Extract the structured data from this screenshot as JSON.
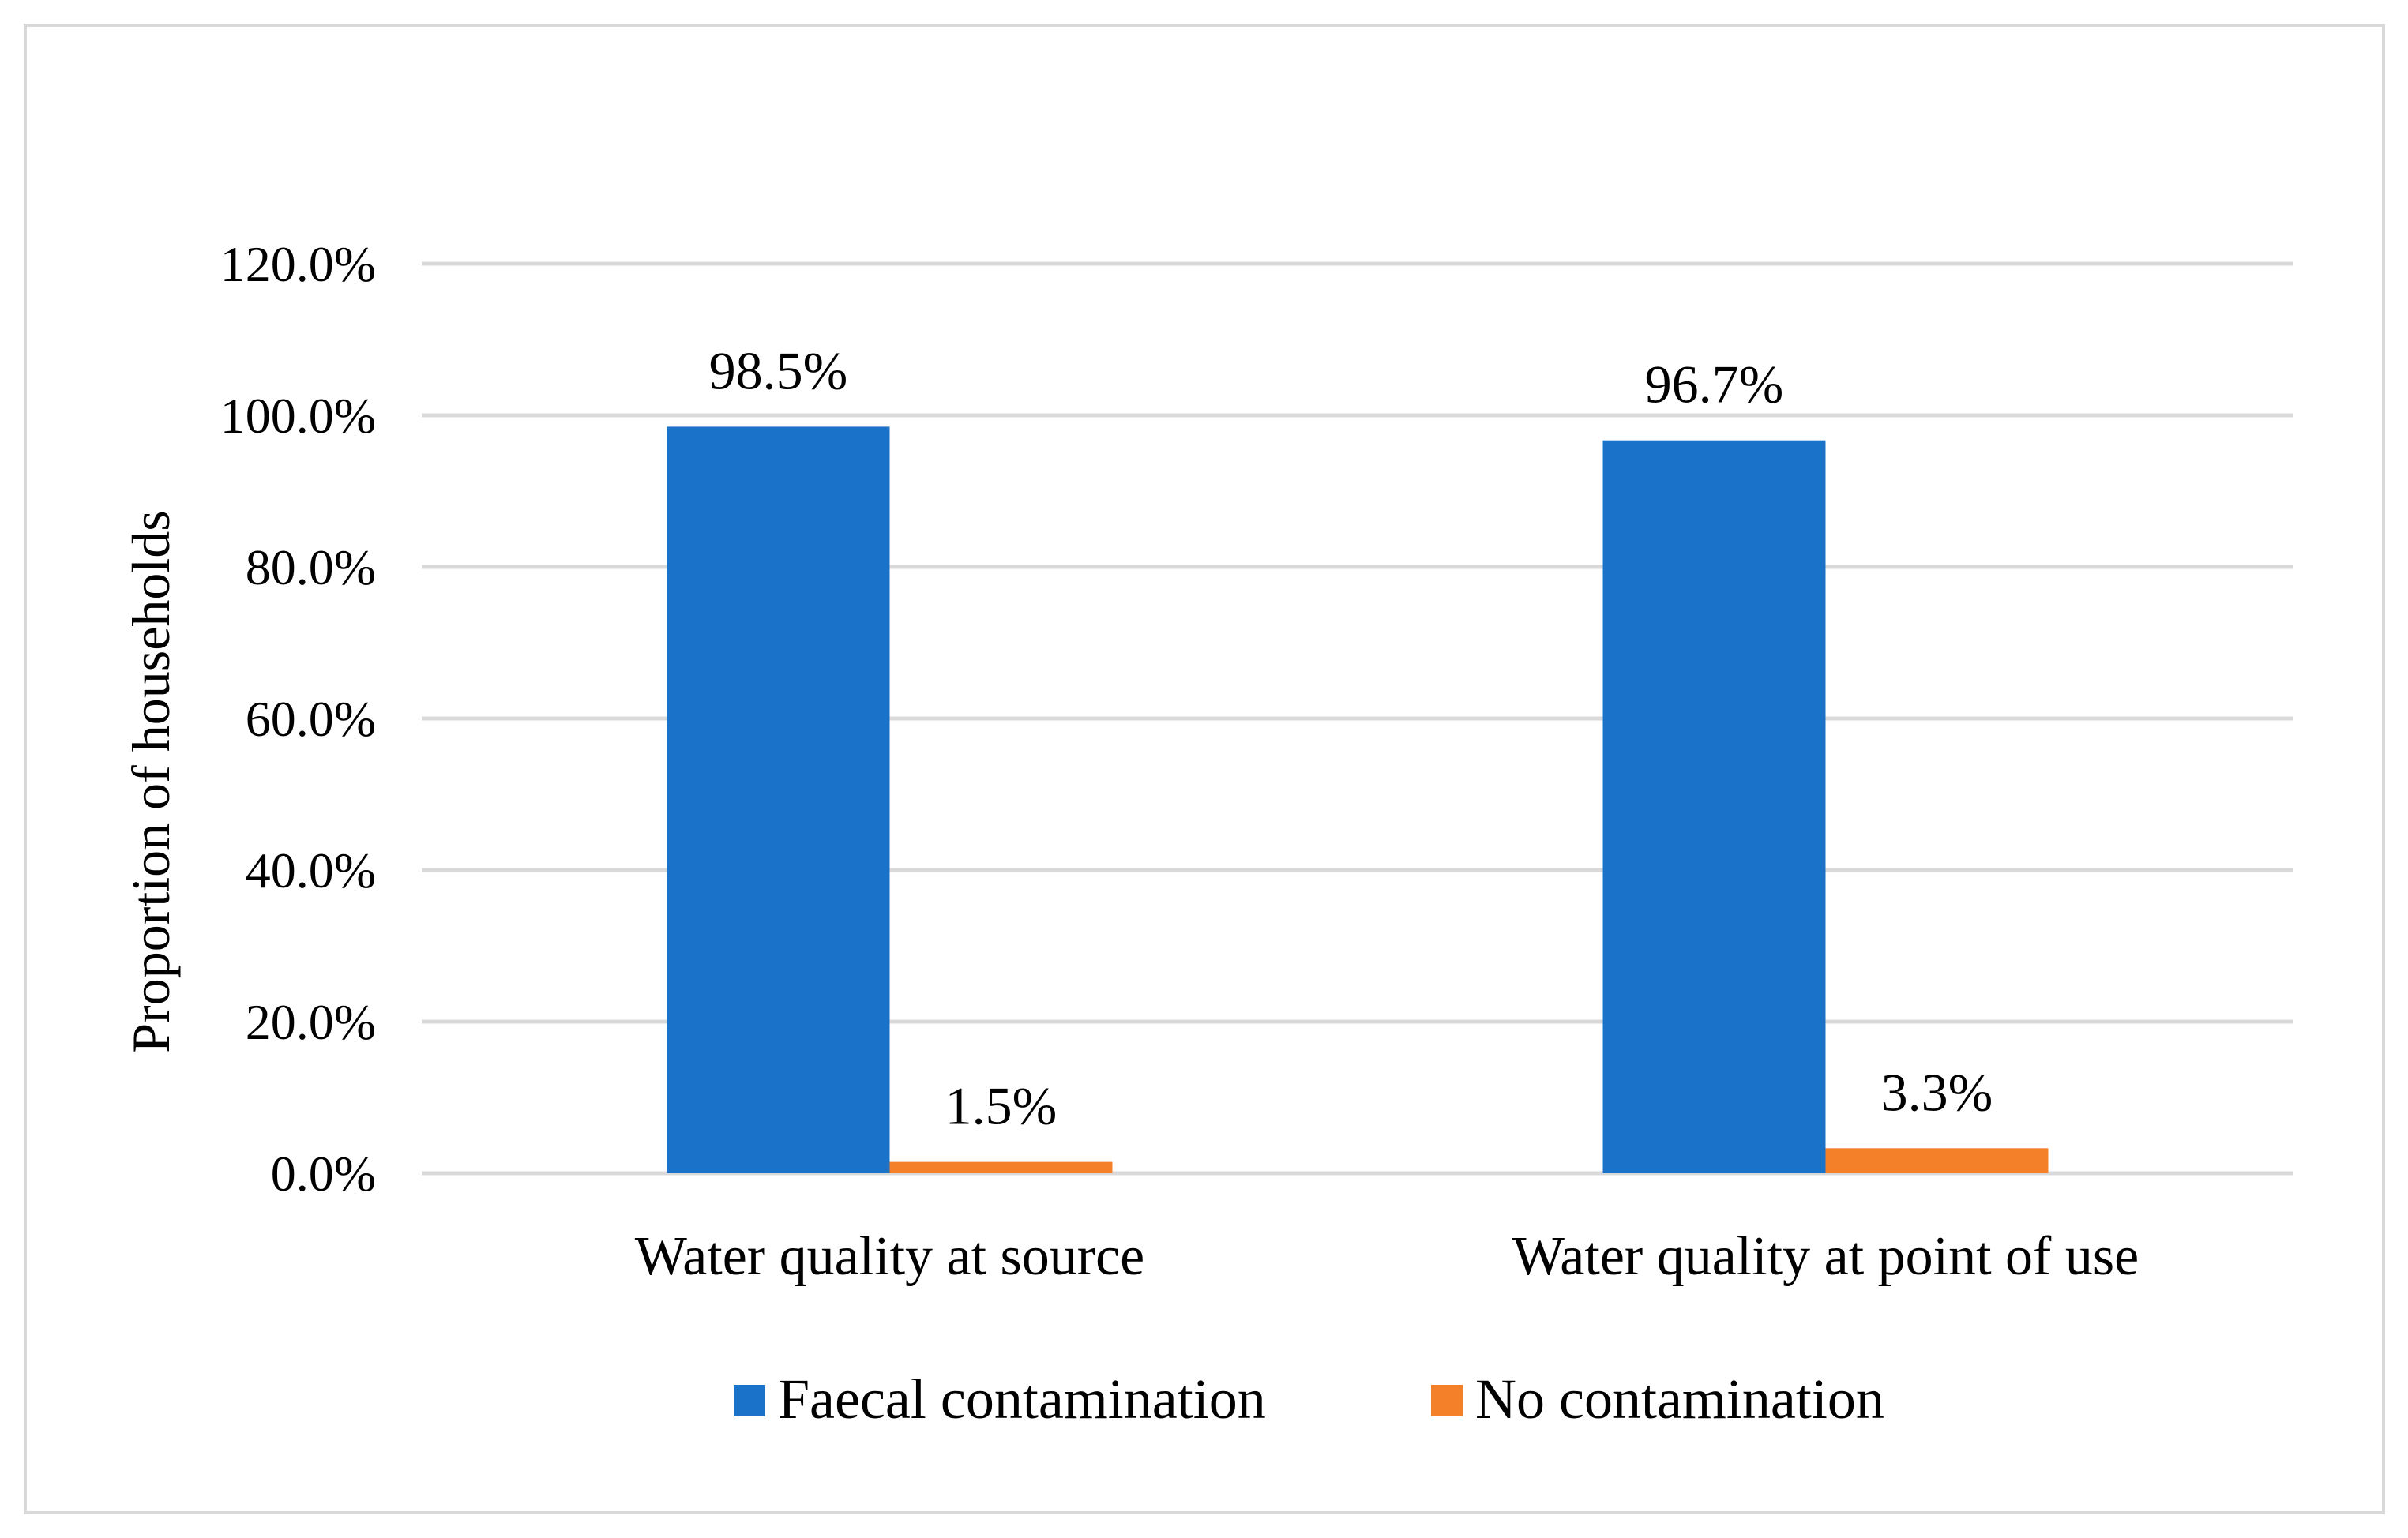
{
  "chart_data": {
    "type": "bar",
    "title": "",
    "xlabel": "",
    "ylabel": "Proportion of households",
    "categories": [
      "Water quality at source",
      "Water quality at point of use"
    ],
    "series": [
      {
        "name": "Faecal contamination",
        "color": "#1a73c9",
        "values": [
          98.5,
          96.7
        ],
        "labels": [
          "98.5%",
          "96.7%"
        ]
      },
      {
        "name": "No contamination",
        "color": "#f5802a",
        "values": [
          1.5,
          3.3
        ],
        "labels": [
          "1.5%",
          "3.3%"
        ]
      }
    ],
    "ylim": [
      0,
      120
    ],
    "yticks": [
      0,
      20,
      40,
      60,
      80,
      100,
      120
    ],
    "ytick_labels": [
      "0.0%",
      "20.0%",
      "40.0%",
      "60.0%",
      "80.0%",
      "100.0%",
      "120.0%"
    ],
    "grid": true,
    "gridline_color": "#d9d9d9",
    "legend_position": "bottom-center"
  }
}
